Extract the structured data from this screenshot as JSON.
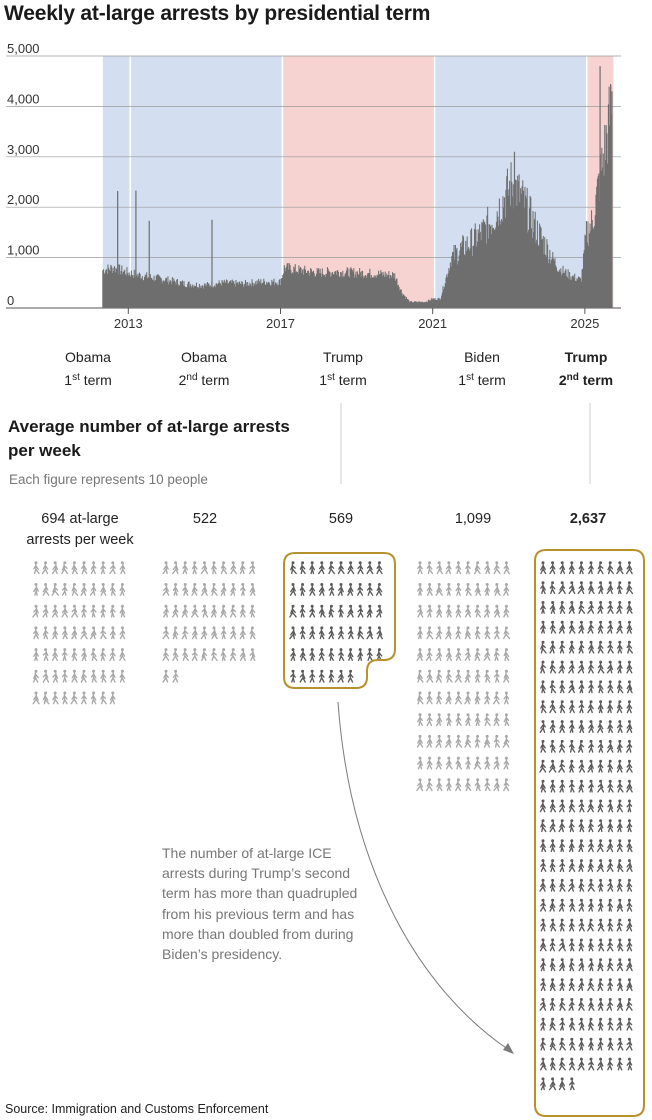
{
  "title": "Weekly at-large arrests by presidential term",
  "colors": {
    "democrat_band": "#d3dff0",
    "republican_band": "#f6d3d1",
    "bars": "#6e6e6e",
    "highlight_box": "#b8912f",
    "figure_dark": "#5b5b5b",
    "figure_light": "#a8a8a8"
  },
  "terms": [
    {
      "president": "Obama",
      "ordinal": "1",
      "suffix": "st",
      "term_word": "term",
      "party": "D",
      "start": 2012.33,
      "end": 2013.05,
      "bold": false
    },
    {
      "president": "Obama",
      "ordinal": "2",
      "suffix": "nd",
      "term_word": "term",
      "party": "D",
      "start": 2013.05,
      "end": 2017.05,
      "bold": false
    },
    {
      "president": "Trump",
      "ordinal": "1",
      "suffix": "st",
      "term_word": "term",
      "party": "R",
      "start": 2017.05,
      "end": 2021.05,
      "bold": false
    },
    {
      "president": "Biden",
      "ordinal": "1",
      "suffix": "st",
      "term_word": "term",
      "party": "D",
      "start": 2021.05,
      "end": 2025.05,
      "bold": false
    },
    {
      "president": "Trump",
      "ordinal": "2",
      "suffix": "nd",
      "term_word": "term",
      "party": "R",
      "start": 2025.05,
      "end": 2025.75,
      "bold": true
    }
  ],
  "chart_data": {
    "type": "bar",
    "title": "Weekly at-large arrests by presidential term",
    "xlabel": "",
    "ylabel": "",
    "xlim": [
      2010.6,
      2025.95
    ],
    "ylim": [
      0,
      5000
    ],
    "x_ticks": [
      2013,
      2017,
      2021,
      2025
    ],
    "y_ticks": [
      0,
      1000,
      2000,
      3000,
      4000,
      5000
    ],
    "y_tick_labels": [
      "0",
      "1,000",
      "2,000",
      "3,000",
      "4,000",
      "5,000"
    ],
    "grid": true,
    "series_profile": {
      "description_points_x": [
        2012.33,
        2012.6,
        2013.0,
        2013.5,
        2014.0,
        2014.5,
        2015.0,
        2015.5,
        2016.0,
        2016.5,
        2017.0,
        2017.1,
        2017.5,
        2018.0,
        2018.5,
        2019.0,
        2019.5,
        2020.0,
        2020.2,
        2020.4,
        2020.8,
        2021.0,
        2021.2,
        2021.5,
        2021.8,
        2022.0,
        2022.3,
        2022.6,
        2022.9,
        2023.1,
        2023.4,
        2023.7,
        2024.0,
        2024.3,
        2024.6,
        2024.9,
        2025.05,
        2025.2,
        2025.4,
        2025.6,
        2025.72
      ],
      "weekly_arrests": [
        750,
        800,
        700,
        620,
        560,
        480,
        450,
        500,
        480,
        520,
        520,
        800,
        750,
        700,
        720,
        700,
        680,
        650,
        300,
        120,
        120,
        180,
        180,
        1000,
        1200,
        1300,
        1500,
        1800,
        2200,
        2500,
        2100,
        1600,
        1200,
        800,
        650,
        550,
        1500,
        1700,
        2600,
        3500,
        4100
      ]
    },
    "spikes": [
      {
        "x": 2012.72,
        "y": 2320
      },
      {
        "x": 2013.2,
        "y": 2330
      },
      {
        "x": 2013.55,
        "y": 1730
      },
      {
        "x": 2015.2,
        "y": 1750
      },
      {
        "x": 2023.15,
        "y": 3100
      },
      {
        "x": 2025.4,
        "y": 4800
      },
      {
        "x": 2025.68,
        "y": 4420
      }
    ],
    "averages": [
      {
        "term": "Obama 1st term",
        "value": 694
      },
      {
        "term": "Obama 2nd term",
        "value": 522
      },
      {
        "term": "Trump 1st term",
        "value": 569
      },
      {
        "term": "Biden 1st term",
        "value": 1099
      },
      {
        "term": "Trump 2nd term",
        "value": 2637
      }
    ]
  },
  "average_section": {
    "title": "Average number of at-large arrests per week",
    "subtitle": "Each figure represents 10 people",
    "values": [
      {
        "label": "694 at-large arrests per week",
        "line1": "694 at-large",
        "line2": "arrests per week",
        "figures": 69,
        "highlight": false
      },
      {
        "label": "522",
        "line1": "522",
        "line2": "",
        "figures": 52,
        "highlight": false
      },
      {
        "label": "569",
        "line1": "569",
        "line2": "",
        "figures": 57,
        "highlight": true
      },
      {
        "label": "1,099",
        "line1": "1,099",
        "line2": "",
        "figures": 110,
        "highlight": false
      },
      {
        "label": "2,637",
        "line1": "2,637",
        "line2": "",
        "figures": 264,
        "highlight": true
      }
    ]
  },
  "annotation": "The number of at-large ICE arrests during Trump’s second term has more than quadrupled from his previous term and has more than doubled from during Biden’s presidency.",
  "source": "Source: Immigration and Customs Enforcement"
}
